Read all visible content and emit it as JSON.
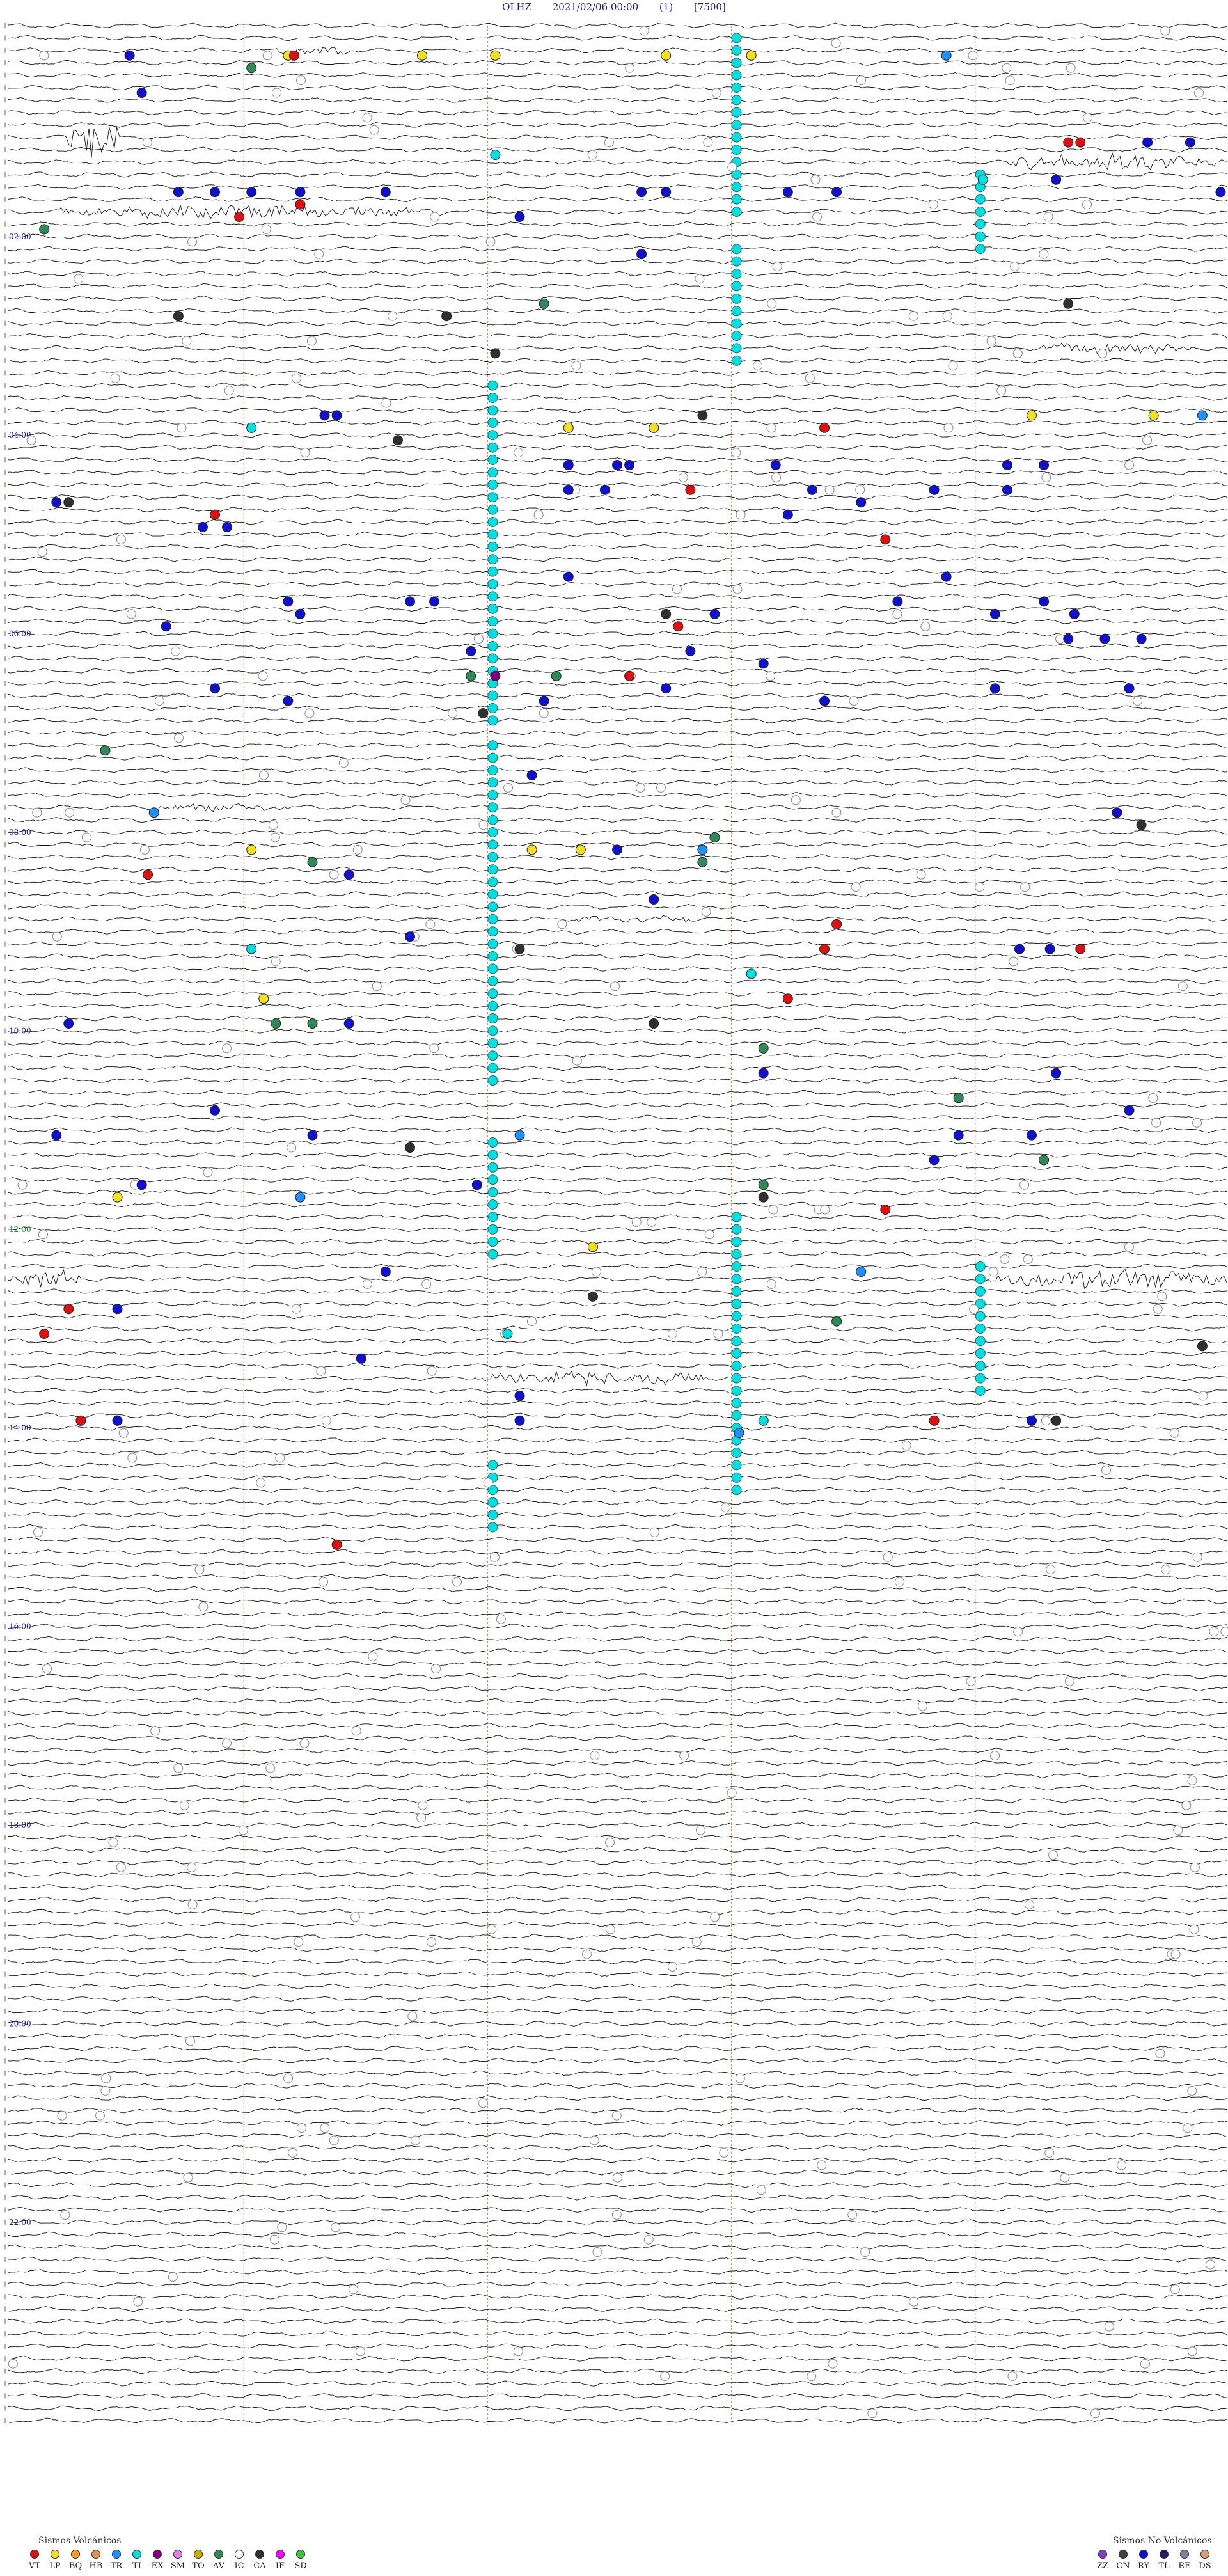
{
  "header": {
    "station": "OLHZ",
    "datetime": "2021/02/06 00:00",
    "channel": "(1)",
    "scale": "[7500]"
  },
  "chart_data": {
    "type": "seismogram",
    "x_minutes_per_line": 15,
    "hour_labels": [
      "02:00",
      "04:00",
      "06:00",
      "08:00",
      "10:00",
      "12:00",
      "14:00",
      "16:00",
      "18:00",
      "20:00",
      "22:00"
    ],
    "hour_label_rows": [
      17,
      33,
      49,
      65,
      81,
      97,
      113,
      129,
      145,
      161,
      177
    ],
    "hour_label_colors": [
      "#1a1ab0",
      "#1a1ab0",
      "#1a1ab0",
      "#1a1ab0",
      "#1a1ab0",
      "#1a9a1a",
      "#1a1ab0",
      "#1a1ab0",
      "#1a1ab0",
      "#1a1ab0",
      "#1a1ab0"
    ],
    "minute_marker_fractions": [
      0.2,
      0.4,
      0.6,
      0.8
    ],
    "num_lines": 192,
    "events": [
      {
        "row": 2,
        "x": 0.1,
        "cls": "RY"
      },
      {
        "row": 2,
        "x": 0.23,
        "cls": "LP"
      },
      {
        "row": 2,
        "x": 0.235,
        "cls": "VT"
      },
      {
        "row": 2,
        "x": 0.34,
        "cls": "LP"
      },
      {
        "row": 2,
        "x": 0.4,
        "cls": "LP"
      },
      {
        "row": 2,
        "x": 0.54,
        "cls": "LP"
      },
      {
        "row": 2,
        "x": 0.61,
        "cls": "LP"
      },
      {
        "row": 2,
        "x": 0.77,
        "cls": "TR"
      },
      {
        "row": 3,
        "x": 0.2,
        "cls": "AV"
      },
      {
        "row": 5,
        "x": 0.11,
        "cls": "RY"
      },
      {
        "row": 9,
        "x": 0.87,
        "cls": "VT"
      },
      {
        "row": 9,
        "x": 0.88,
        "cls": "VT"
      },
      {
        "row": 9,
        "x": 0.935,
        "cls": "RY"
      },
      {
        "row": 9,
        "x": 0.97,
        "cls": "RY"
      },
      {
        "row": 10,
        "x": 0.4,
        "cls": "TI"
      },
      {
        "row": 12,
        "x": 0.8,
        "cls": "TI"
      },
      {
        "row": 12,
        "x": 0.86,
        "cls": "RY"
      },
      {
        "row": 13,
        "x": 0.14,
        "cls": "RY"
      },
      {
        "row": 13,
        "x": 0.17,
        "cls": "RY"
      },
      {
        "row": 13,
        "x": 0.2,
        "cls": "RY"
      },
      {
        "row": 13,
        "x": 0.24,
        "cls": "RY"
      },
      {
        "row": 13,
        "x": 0.31,
        "cls": "RY"
      },
      {
        "row": 13,
        "x": 0.52,
        "cls": "RY"
      },
      {
        "row": 13,
        "x": 0.54,
        "cls": "RY"
      },
      {
        "row": 13,
        "x": 0.64,
        "cls": "RY"
      },
      {
        "row": 13,
        "x": 0.68,
        "cls": "RY"
      },
      {
        "row": 13,
        "x": 0.995,
        "cls": "RY"
      },
      {
        "row": 14,
        "x": 0.24,
        "cls": "VT"
      },
      {
        "row": 15,
        "x": 0.19,
        "cls": "VT"
      },
      {
        "row": 15,
        "x": 0.42,
        "cls": "RY"
      },
      {
        "row": 16,
        "x": 0.03,
        "cls": "AV"
      },
      {
        "row": 18,
        "x": 0.52,
        "cls": "RY"
      },
      {
        "row": 22,
        "x": 0.44,
        "cls": "AV"
      },
      {
        "row": 22,
        "x": 0.87,
        "cls": "CA"
      },
      {
        "row": 23,
        "x": 0.14,
        "cls": "CA"
      },
      {
        "row": 23,
        "x": 0.36,
        "cls": "CA"
      },
      {
        "row": 26,
        "x": 0.4,
        "cls": "CA"
      },
      {
        "row": 31,
        "x": 0.26,
        "cls": "RY"
      },
      {
        "row": 31,
        "x": 0.27,
        "cls": "RY"
      },
      {
        "row": 31,
        "x": 0.57,
        "cls": "CA"
      },
      {
        "row": 31,
        "x": 0.84,
        "cls": "LP"
      },
      {
        "row": 31,
        "x": 0.94,
        "cls": "LP"
      },
      {
        "row": 31,
        "x": 0.98,
        "cls": "TR"
      },
      {
        "row": 32,
        "x": 0.2,
        "cls": "TI"
      },
      {
        "row": 32,
        "x": 0.46,
        "cls": "LP"
      },
      {
        "row": 32,
        "x": 0.53,
        "cls": "LP"
      },
      {
        "row": 32,
        "x": 0.67,
        "cls": "VT"
      },
      {
        "row": 33,
        "x": 0.32,
        "cls": "CA"
      },
      {
        "row": 35,
        "x": 0.46,
        "cls": "RY"
      },
      {
        "row": 35,
        "x": 0.5,
        "cls": "RY"
      },
      {
        "row": 35,
        "x": 0.51,
        "cls": "RY"
      },
      {
        "row": 35,
        "x": 0.63,
        "cls": "RY"
      },
      {
        "row": 35,
        "x": 0.82,
        "cls": "RY"
      },
      {
        "row": 35,
        "x": 0.85,
        "cls": "RY"
      },
      {
        "row": 37,
        "x": 0.46,
        "cls": "RY"
      },
      {
        "row": 37,
        "x": 0.49,
        "cls": "RY"
      },
      {
        "row": 37,
        "x": 0.56,
        "cls": "VT"
      },
      {
        "row": 37,
        "x": 0.66,
        "cls": "RY"
      },
      {
        "row": 37,
        "x": 0.76,
        "cls": "RY"
      },
      {
        "row": 37,
        "x": 0.82,
        "cls": "RY"
      },
      {
        "row": 38,
        "x": 0.04,
        "cls": "RY"
      },
      {
        "row": 38,
        "x": 0.05,
        "cls": "CA"
      },
      {
        "row": 38,
        "x": 0.7,
        "cls": "RY"
      },
      {
        "row": 39,
        "x": 0.17,
        "cls": "VT"
      },
      {
        "row": 39,
        "x": 0.64,
        "cls": "RY"
      },
      {
        "row": 40,
        "x": 0.16,
        "cls": "RY"
      },
      {
        "row": 40,
        "x": 0.18,
        "cls": "RY"
      },
      {
        "row": 41,
        "x": 0.72,
        "cls": "VT"
      },
      {
        "row": 44,
        "x": 0.46,
        "cls": "RY"
      },
      {
        "row": 44,
        "x": 0.77,
        "cls": "RY"
      },
      {
        "row": 46,
        "x": 0.23,
        "cls": "RY"
      },
      {
        "row": 46,
        "x": 0.33,
        "cls": "RY"
      },
      {
        "row": 46,
        "x": 0.35,
        "cls": "RY"
      },
      {
        "row": 46,
        "x": 0.73,
        "cls": "RY"
      },
      {
        "row": 46,
        "x": 0.85,
        "cls": "RY"
      },
      {
        "row": 47,
        "x": 0.24,
        "cls": "RY"
      },
      {
        "row": 47,
        "x": 0.54,
        "cls": "CA"
      },
      {
        "row": 47,
        "x": 0.58,
        "cls": "RY"
      },
      {
        "row": 47,
        "x": 0.81,
        "cls": "RY"
      },
      {
        "row": 47,
        "x": 0.875,
        "cls": "RY"
      },
      {
        "row": 48,
        "x": 0.13,
        "cls": "RY"
      },
      {
        "row": 48,
        "x": 0.55,
        "cls": "VT"
      },
      {
        "row": 49,
        "x": 0.87,
        "cls": "RY"
      },
      {
        "row": 49,
        "x": 0.9,
        "cls": "RY"
      },
      {
        "row": 49,
        "x": 0.93,
        "cls": "RY"
      },
      {
        "row": 50,
        "x": 0.38,
        "cls": "RY"
      },
      {
        "row": 50,
        "x": 0.56,
        "cls": "RY"
      },
      {
        "row": 51,
        "x": 0.62,
        "cls": "RY"
      },
      {
        "row": 52,
        "x": 0.38,
        "cls": "AV"
      },
      {
        "row": 52,
        "x": 0.4,
        "cls": "EX"
      },
      {
        "row": 52,
        "x": 0.45,
        "cls": "AV"
      },
      {
        "row": 52,
        "x": 0.51,
        "cls": "VT"
      },
      {
        "row": 53,
        "x": 0.17,
        "cls": "RY"
      },
      {
        "row": 53,
        "x": 0.54,
        "cls": "RY"
      },
      {
        "row": 53,
        "x": 0.81,
        "cls": "RY"
      },
      {
        "row": 53,
        "x": 0.92,
        "cls": "RY"
      },
      {
        "row": 54,
        "x": 0.23,
        "cls": "RY"
      },
      {
        "row": 54,
        "x": 0.44,
        "cls": "RY"
      },
      {
        "row": 54,
        "x": 0.67,
        "cls": "RY"
      },
      {
        "row": 55,
        "x": 0.39,
        "cls": "CA"
      },
      {
        "row": 58,
        "x": 0.08,
        "cls": "AV"
      },
      {
        "row": 60,
        "x": 0.43,
        "cls": "RY"
      },
      {
        "row": 63,
        "x": 0.12,
        "cls": "TR"
      },
      {
        "row": 63,
        "x": 0.91,
        "cls": "RY"
      },
      {
        "row": 64,
        "x": 0.93,
        "cls": "CA"
      },
      {
        "row": 65,
        "x": 0.58,
        "cls": "AV"
      },
      {
        "row": 66,
        "x": 0.43,
        "cls": "LP"
      },
      {
        "row": 66,
        "x": 0.47,
        "cls": "LP"
      },
      {
        "row": 66,
        "x": 0.5,
        "cls": "RY"
      },
      {
        "row": 66,
        "x": 0.57,
        "cls": "TR"
      },
      {
        "row": 66,
        "x": 0.2,
        "cls": "LP"
      },
      {
        "row": 67,
        "x": 0.25,
        "cls": "AV"
      },
      {
        "row": 67,
        "x": 0.57,
        "cls": "AV"
      },
      {
        "row": 68,
        "x": 0.115,
        "cls": "VT"
      },
      {
        "row": 68,
        "x": 0.28,
        "cls": "RY"
      },
      {
        "row": 70,
        "x": 0.53,
        "cls": "RY"
      },
      {
        "row": 72,
        "x": 0.68,
        "cls": "VT"
      },
      {
        "row": 73,
        "x": 0.33,
        "cls": "RY"
      },
      {
        "row": 74,
        "x": 0.2,
        "cls": "TI"
      },
      {
        "row": 74,
        "x": 0.42,
        "cls": "CA"
      },
      {
        "row": 74,
        "x": 0.67,
        "cls": "VT"
      },
      {
        "row": 74,
        "x": 0.83,
        "cls": "RY"
      },
      {
        "row": 74,
        "x": 0.855,
        "cls": "RY"
      },
      {
        "row": 74,
        "x": 0.88,
        "cls": "VT"
      },
      {
        "row": 76,
        "x": 0.61,
        "cls": "TI"
      },
      {
        "row": 78,
        "x": 0.21,
        "cls": "LP"
      },
      {
        "row": 78,
        "x": 0.64,
        "cls": "VT"
      },
      {
        "row": 80,
        "x": 0.05,
        "cls": "RY"
      },
      {
        "row": 80,
        "x": 0.22,
        "cls": "AV"
      },
      {
        "row": 80,
        "x": 0.25,
        "cls": "AV"
      },
      {
        "row": 80,
        "x": 0.28,
        "cls": "RY"
      },
      {
        "row": 80,
        "x": 0.53,
        "cls": "CA"
      },
      {
        "row": 82,
        "x": 0.62,
        "cls": "AV"
      },
      {
        "row": 84,
        "x": 0.62,
        "cls": "RY"
      },
      {
        "row": 84,
        "x": 0.86,
        "cls": "RY"
      },
      {
        "row": 86,
        "x": 0.78,
        "cls": "AV"
      },
      {
        "row": 87,
        "x": 0.17,
        "cls": "RY"
      },
      {
        "row": 87,
        "x": 0.92,
        "cls": "RY"
      },
      {
        "row": 89,
        "x": 0.04,
        "cls": "RY"
      },
      {
        "row": 89,
        "x": 0.25,
        "cls": "RY"
      },
      {
        "row": 89,
        "x": 0.42,
        "cls": "TR"
      },
      {
        "row": 89,
        "x": 0.78,
        "cls": "RY"
      },
      {
        "row": 89,
        "x": 0.84,
        "cls": "RY"
      },
      {
        "row": 90,
        "x": 0.33,
        "cls": "CA"
      },
      {
        "row": 91,
        "x": 0.76,
        "cls": "RY"
      },
      {
        "row": 91,
        "x": 0.85,
        "cls": "AV"
      },
      {
        "row": 93,
        "x": 0.11,
        "cls": "RY"
      },
      {
        "row": 93,
        "x": 0.385,
        "cls": "RY"
      },
      {
        "row": 93,
        "x": 0.62,
        "cls": "AV"
      },
      {
        "row": 94,
        "x": 0.09,
        "cls": "LP"
      },
      {
        "row": 94,
        "x": 0.24,
        "cls": "TR"
      },
      {
        "row": 94,
        "x": 0.62,
        "cls": "CA"
      },
      {
        "row": 95,
        "x": 0.72,
        "cls": "VT"
      },
      {
        "row": 98,
        "x": 0.48,
        "cls": "LP"
      },
      {
        "row": 100,
        "x": 0.31,
        "cls": "RY"
      },
      {
        "row": 100,
        "x": 0.7,
        "cls": "TR"
      },
      {
        "row": 102,
        "x": 0.48,
        "cls": "CA"
      },
      {
        "row": 103,
        "x": 0.05,
        "cls": "VT"
      },
      {
        "row": 103,
        "x": 0.09,
        "cls": "RY"
      },
      {
        "row": 104,
        "x": 0.68,
        "cls": "AV"
      },
      {
        "row": 105,
        "x": 0.03,
        "cls": "VT"
      },
      {
        "row": 105,
        "x": 0.41,
        "cls": "TI"
      },
      {
        "row": 106,
        "x": 0.98,
        "cls": "CA"
      },
      {
        "row": 107,
        "x": 0.29,
        "cls": "RY"
      },
      {
        "row": 110,
        "x": 0.42,
        "cls": "RY"
      },
      {
        "row": 110,
        "x": 0.42,
        "cls": "RY"
      },
      {
        "row": 112,
        "x": 0.06,
        "cls": "VT"
      },
      {
        "row": 112,
        "x": 0.09,
        "cls": "RY"
      },
      {
        "row": 112,
        "x": 0.42,
        "cls": "RY"
      },
      {
        "row": 112,
        "x": 0.62,
        "cls": "TI"
      },
      {
        "row": 112,
        "x": 0.76,
        "cls": "VT"
      },
      {
        "row": 112,
        "x": 0.84,
        "cls": "RY"
      },
      {
        "row": 112,
        "x": 0.86,
        "cls": "CA"
      },
      {
        "row": 113,
        "x": 0.6,
        "cls": "TR"
      },
      {
        "row": 122,
        "x": 0.27,
        "cls": "VT"
      }
    ],
    "tremor_columns": [
      {
        "x": 0.6,
        "row_start": 1,
        "row_end": 15
      },
      {
        "x": 0.6,
        "row_start": 18,
        "row_end": 27
      },
      {
        "x": 0.8,
        "row_start": 12,
        "row_end": 18
      },
      {
        "x": 0.4,
        "row_start": 29,
        "row_end": 56
      },
      {
        "x": 0.4,
        "row_start": 58,
        "row_end": 85
      },
      {
        "x": 0.4,
        "row_start": 90,
        "row_end": 99
      },
      {
        "x": 0.6,
        "row_start": 96,
        "row_end": 114
      },
      {
        "x": 0.8,
        "row_start": 100,
        "row_end": 110
      },
      {
        "x": 0.4,
        "row_start": 116,
        "row_end": 121
      },
      {
        "x": 0.6,
        "row_start": 115,
        "row_end": 118
      }
    ],
    "bursts": [
      {
        "row": 9,
        "x_start": 0.05,
        "x_end": 0.09,
        "amp": 3.2
      },
      {
        "row": 11,
        "x_start": 0.82,
        "x_end": 1.0,
        "amp": 1.2
      },
      {
        "row": 15,
        "x_start": 0.04,
        "x_end": 0.36,
        "amp": 0.9
      },
      {
        "row": 2,
        "x_start": 0.22,
        "x_end": 0.28,
        "amp": 0.7
      },
      {
        "row": 26,
        "x_start": 0.84,
        "x_end": 0.97,
        "amp": 0.8
      },
      {
        "row": 101,
        "x_start": 0.0,
        "x_end": 0.06,
        "amp": 1.4
      },
      {
        "row": 101,
        "x_start": 0.8,
        "x_end": 1.0,
        "amp": 1.3
      },
      {
        "row": 109,
        "x_start": 0.38,
        "x_end": 0.58,
        "amp": 1.0
      },
      {
        "row": 63,
        "x_start": 0.12,
        "x_end": 0.24,
        "amp": 0.6
      },
      {
        "row": 72,
        "x_start": 0.46,
        "x_end": 0.56,
        "amp": 0.5
      }
    ],
    "legend_volcanic": {
      "title": "Sismos Volcánicos",
      "items": [
        {
          "code": "VT",
          "color": "#e01010"
        },
        {
          "code": "LP",
          "color": "#f0e020"
        },
        {
          "code": "BQ",
          "color": "#f0a020"
        },
        {
          "code": "HB",
          "color": "#e09050"
        },
        {
          "code": "TR",
          "color": "#1e90ff"
        },
        {
          "code": "TI",
          "color": "#00e0e0"
        },
        {
          "code": "EX",
          "color": "#800080"
        },
        {
          "code": "SM",
          "color": "#e080e0"
        },
        {
          "code": "TO",
          "color": "#c8b000"
        },
        {
          "code": "AV",
          "color": "#2e8b57"
        },
        {
          "code": "IC",
          "color": "#ffffff"
        },
        {
          "code": "CA",
          "color": "#303030"
        },
        {
          "code": "IF",
          "color": "#ff00ff"
        },
        {
          "code": "SD",
          "color": "#40c040"
        }
      ]
    },
    "legend_nonvolcanic": {
      "title": "Sismos No Volcánicos",
      "items": [
        {
          "code": "ZZ",
          "color": "#8040c0"
        },
        {
          "code": "CN",
          "color": "#404040"
        },
        {
          "code": "RY",
          "color": "#1010d0"
        },
        {
          "code": "TL",
          "color": "#202060"
        },
        {
          "code": "RE",
          "color": "#8080a0"
        },
        {
          "code": "DS",
          "color": "#d0a080"
        }
      ]
    }
  }
}
